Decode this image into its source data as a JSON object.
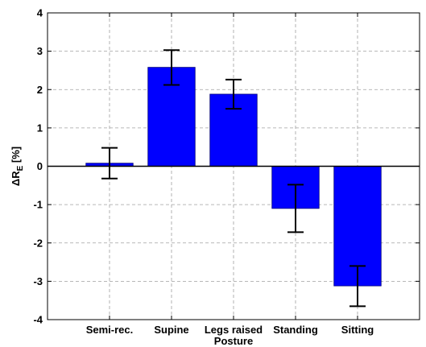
{
  "chart_data": {
    "type": "bar",
    "categories": [
      "Semi-rec.",
      "Supine",
      "Legs raised",
      "Standing",
      "Sitting"
    ],
    "values": [
      0.08,
      2.58,
      1.88,
      -1.1,
      -3.12
    ],
    "errors": [
      [
        -0.32,
        0.48
      ],
      [
        2.12,
        3.03
      ],
      [
        1.5,
        2.26
      ],
      [
        -1.72,
        -0.48
      ],
      [
        -3.65,
        -2.6
      ]
    ],
    "xlabel": "Posture",
    "ylabel": {
      "main": "ΔR",
      "sub": "E",
      "unit": " [%]"
    },
    "ylim": [
      -4,
      4
    ],
    "yticks": [
      -4,
      -3,
      -2,
      -1,
      0,
      1,
      2,
      3,
      4
    ],
    "grid": true,
    "bar_color": "#0000ff"
  }
}
